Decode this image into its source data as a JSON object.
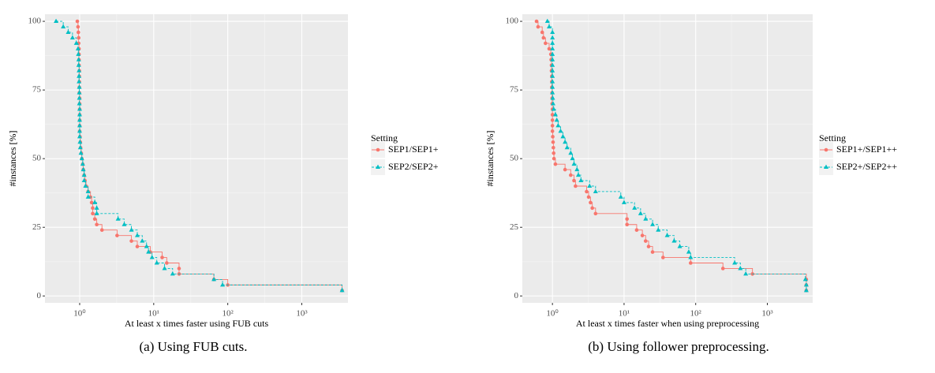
{
  "chart_data": [
    {
      "type": "step",
      "xlabel": "At least x times faster using FUB cuts",
      "ylabel": "#instances [%]",
      "caption": "(a) Using FUB cuts.",
      "legend_title": "Setting",
      "log_x": true,
      "grid": true,
      "xlim": [
        0.34,
        4200
      ],
      "ylim": [
        -2.5,
        102.6
      ],
      "xticks": [
        {
          "value": 1,
          "label": "10⁰"
        },
        {
          "value": 10,
          "label": "10¹"
        },
        {
          "value": 100,
          "label": "10²"
        },
        {
          "value": 1000,
          "label": "10³"
        }
      ],
      "yticks": [
        0,
        25,
        50,
        75,
        100
      ],
      "series": [
        {
          "name": "SEP1/SEP1+",
          "color": "#f8766d",
          "marker": "circle",
          "dash": "solid",
          "x": [
            0.93,
            0.95,
            0.96,
            0.97,
            0.97,
            0.98,
            0.98,
            0.98,
            0.98,
            0.99,
            0.99,
            0.99,
            0.99,
            0.99,
            1,
            1,
            1,
            1,
            1,
            1,
            1,
            1.01,
            1.02,
            1.03,
            1.05,
            1.07,
            1.1,
            1.12,
            1.15,
            1.18,
            1.22,
            1.3,
            1.4,
            1.45,
            1.5,
            1.5,
            1.6,
            1.7,
            2,
            3.2,
            5,
            6,
            9,
            13,
            15,
            22,
            22,
            65,
            100,
            3500
          ],
          "values": [
            100,
            98,
            96,
            94,
            92,
            90,
            88,
            86,
            84,
            82,
            80,
            78,
            76,
            74,
            72,
            70,
            68,
            66,
            64,
            62,
            60,
            58,
            56,
            54,
            52,
            50,
            48,
            46,
            44,
            42,
            40,
            38,
            36,
            34,
            32,
            30,
            28,
            26,
            24,
            22,
            20,
            18,
            16,
            14,
            12,
            10,
            8,
            6,
            4,
            2
          ]
        },
        {
          "name": "SEP2/SEP2+",
          "color": "#00bfc4",
          "marker": "triangle",
          "dash": "dashed",
          "x": [
            0.48,
            0.6,
            0.7,
            0.8,
            0.9,
            0.95,
            0.96,
            0.97,
            0.97,
            0.98,
            0.98,
            0.98,
            0.99,
            0.99,
            0.99,
            0.99,
            1,
            1,
            1,
            1,
            1,
            1,
            1.01,
            1.02,
            1.04,
            1.07,
            1.1,
            1.12,
            1.15,
            1.15,
            1.2,
            1.3,
            1.3,
            1.6,
            1.7,
            1.7,
            3.3,
            4,
            5,
            6,
            7,
            8,
            8.5,
            9.5,
            11,
            14,
            18,
            65,
            85,
            3500
          ],
          "values": [
            100,
            98,
            96,
            94,
            92,
            90,
            88,
            86,
            84,
            82,
            80,
            78,
            76,
            74,
            72,
            70,
            68,
            66,
            64,
            62,
            60,
            58,
            56,
            54,
            52,
            50,
            48,
            46,
            44,
            42,
            40,
            38,
            36,
            34,
            32,
            30,
            28,
            26,
            24,
            22,
            20,
            18,
            16,
            14,
            12,
            10,
            8,
            6,
            4,
            2
          ]
        }
      ]
    },
    {
      "type": "step",
      "xlabel": "At least x times faster when using preprocessing",
      "ylabel": "#instances [%]",
      "caption": "(b) Using follower preprocessing.",
      "legend_title": "Setting",
      "log_x": true,
      "grid": true,
      "xlim": [
        0.38,
        4300
      ],
      "ylim": [
        -2.5,
        102.6
      ],
      "xticks": [
        {
          "value": 1,
          "label": "10⁰"
        },
        {
          "value": 10,
          "label": "10¹"
        },
        {
          "value": 100,
          "label": "10²"
        },
        {
          "value": 1000,
          "label": "10³"
        }
      ],
      "yticks": [
        0,
        25,
        50,
        75,
        100
      ],
      "series": [
        {
          "name": "SEP1+/SEP1++",
          "color": "#f8766d",
          "marker": "circle",
          "dash": "solid",
          "x": [
            0.6,
            0.63,
            0.72,
            0.75,
            0.8,
            0.9,
            0.95,
            0.96,
            0.97,
            0.97,
            0.98,
            0.98,
            0.98,
            0.99,
            0.99,
            0.99,
            1,
            1,
            1,
            1,
            1,
            1.01,
            1.02,
            1.03,
            1.04,
            1.05,
            1.1,
            1.5,
            1.8,
            2,
            2.1,
            3,
            3.2,
            3.4,
            3.6,
            4,
            11,
            11,
            15,
            18,
            20,
            22,
            25,
            35,
            85,
            240,
            620,
            3500,
            3500,
            3500
          ],
          "values": [
            100,
            98,
            96,
            94,
            92,
            90,
            88,
            86,
            84,
            82,
            80,
            78,
            76,
            74,
            72,
            70,
            68,
            66,
            64,
            62,
            60,
            58,
            56,
            54,
            52,
            50,
            48,
            46,
            44,
            42,
            40,
            38,
            36,
            34,
            32,
            30,
            28,
            26,
            24,
            22,
            20,
            18,
            16,
            14,
            12,
            10,
            8,
            6,
            4,
            2
          ]
        },
        {
          "name": "SEP2+/SEP2++",
          "color": "#00bfc4",
          "marker": "triangle",
          "dash": "dashed",
          "x": [
            0.85,
            0.9,
            1,
            1,
            1,
            1,
            1,
            1,
            1,
            1,
            1,
            1,
            1,
            1,
            1.01,
            1.02,
            1.04,
            1.1,
            1.15,
            1.2,
            1.3,
            1.4,
            1.5,
            1.6,
            1.8,
            1.9,
            2,
            2.2,
            2.3,
            2.5,
            3.3,
            4,
            9,
            10,
            14,
            17,
            20,
            25,
            30,
            40,
            50,
            60,
            80,
            85,
            350,
            420,
            500,
            3400,
            3500,
            3500
          ],
          "values": [
            100,
            98,
            96,
            94,
            92,
            90,
            88,
            86,
            84,
            82,
            80,
            78,
            76,
            74,
            72,
            70,
            68,
            66,
            64,
            62,
            60,
            58,
            56,
            54,
            52,
            50,
            48,
            46,
            44,
            42,
            40,
            38,
            36,
            34,
            32,
            30,
            28,
            26,
            24,
            22,
            20,
            18,
            16,
            14,
            12,
            10,
            8,
            6,
            4,
            2
          ]
        }
      ]
    }
  ]
}
